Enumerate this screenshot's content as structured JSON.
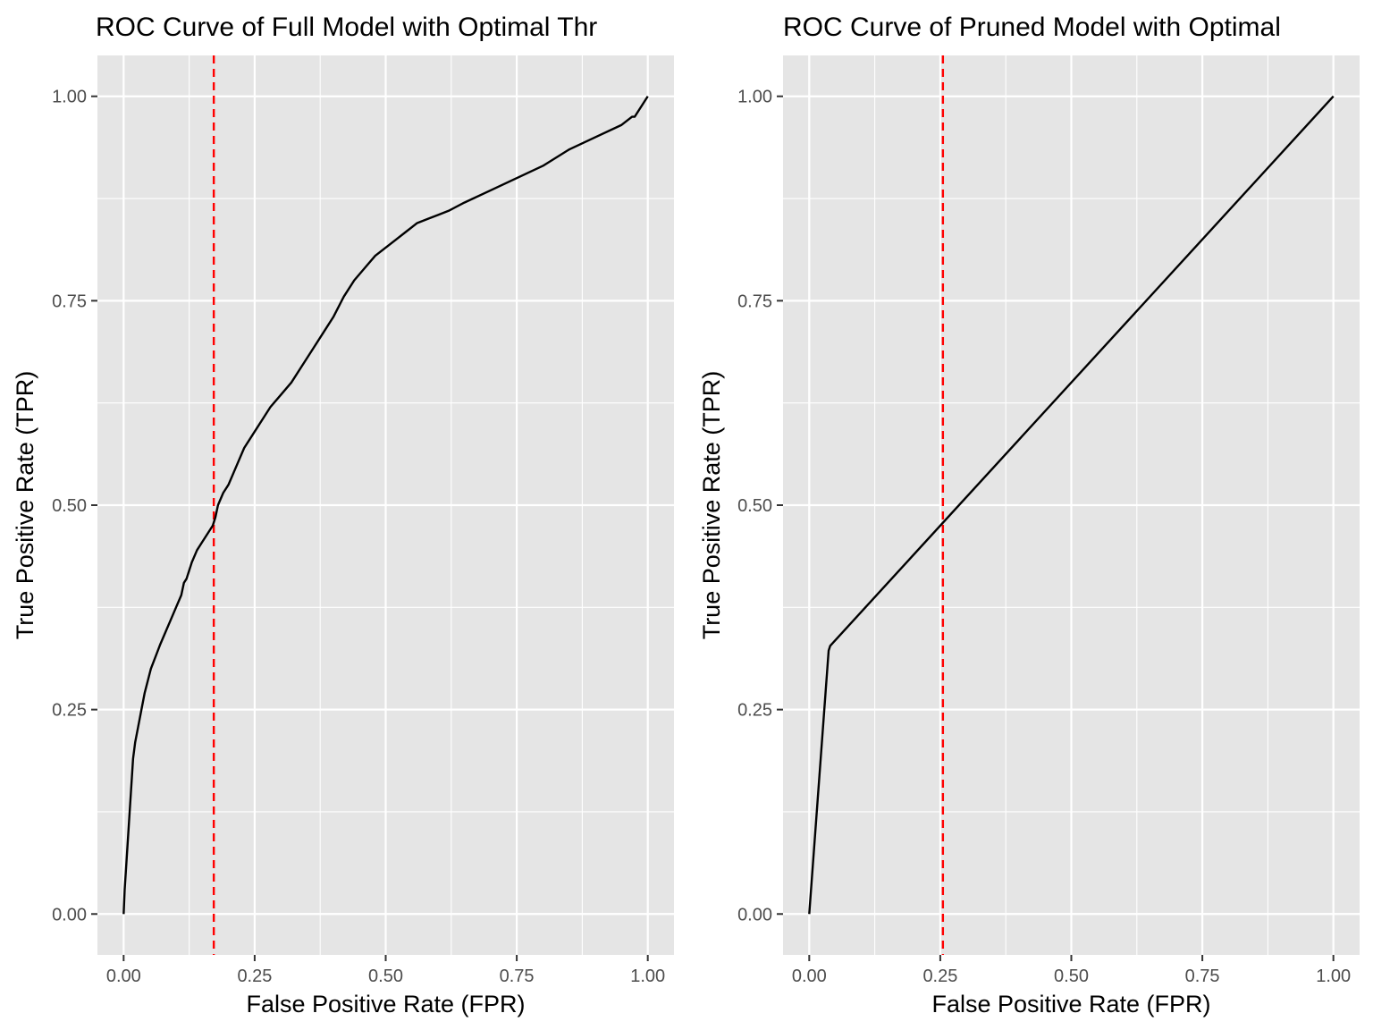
{
  "colors": {
    "panel_background": "#e5e5e5",
    "grid": "#ffffff",
    "roc_line": "#000000",
    "threshold_line": "#ff0000",
    "tick_text": "#4d4d4d",
    "tick_mark": "#333333"
  },
  "chart_data": [
    {
      "type": "line",
      "title": "ROC Curve of Full Model with Optimal Thr",
      "xlabel": "False Positive Rate (FPR)",
      "ylabel": "True Positive Rate (TPR)",
      "xlim": [
        -0.05,
        1.05
      ],
      "ylim": [
        -0.05,
        1.05
      ],
      "xticks": [
        0,
        0.25,
        0.5,
        0.75,
        1
      ],
      "yticks": [
        0,
        0.25,
        0.5,
        0.75,
        1
      ],
      "xtick_labels": [
        "0.00",
        "0.25",
        "0.50",
        "0.75",
        "1.00"
      ],
      "ytick_labels": [
        "0.00",
        "0.25",
        "0.50",
        "0.75",
        "1.00"
      ],
      "grid": true,
      "series": [
        {
          "x": [
            0,
            0.002,
            0.006,
            0.01,
            0.014,
            0.018,
            0.022,
            0.028,
            0.034,
            0.04,
            0.046,
            0.052,
            0.058,
            0.064,
            0.07,
            0.08,
            0.09,
            0.1,
            0.11,
            0.115,
            0.12,
            0.13,
            0.14,
            0.15,
            0.16,
            0.17,
            0.175,
            0.18,
            0.19,
            0.2,
            0.21,
            0.22,
            0.23,
            0.25,
            0.265,
            0.28,
            0.3,
            0.32,
            0.34,
            0.36,
            0.38,
            0.4,
            0.42,
            0.44,
            0.46,
            0.48,
            0.5,
            0.52,
            0.54,
            0.56,
            0.58,
            0.6,
            0.62,
            0.65,
            0.7,
            0.75,
            0.8,
            0.85,
            0.9,
            0.95,
            0.97,
            0.975,
            1
          ],
          "y": [
            0,
            0.03,
            0.07,
            0.11,
            0.15,
            0.19,
            0.21,
            0.23,
            0.25,
            0.27,
            0.285,
            0.3,
            0.31,
            0.32,
            0.33,
            0.345,
            0.36,
            0.375,
            0.39,
            0.405,
            0.41,
            0.43,
            0.445,
            0.455,
            0.465,
            0.475,
            0.485,
            0.5,
            0.515,
            0.525,
            0.54,
            0.555,
            0.57,
            0.59,
            0.605,
            0.62,
            0.635,
            0.65,
            0.67,
            0.69,
            0.71,
            0.73,
            0.755,
            0.775,
            0.79,
            0.805,
            0.815,
            0.825,
            0.835,
            0.845,
            0.85,
            0.855,
            0.86,
            0.87,
            0.885,
            0.9,
            0.915,
            0.935,
            0.95,
            0.965,
            0.975,
            0.975,
            1
          ]
        }
      ],
      "vline": {
        "x": 0.172,
        "style": "dashed"
      }
    },
    {
      "type": "line",
      "title": "ROC Curve of Pruned Model with Optimal",
      "xlabel": "False Positive Rate (FPR)",
      "ylabel": "True Positive Rate (TPR)",
      "xlim": [
        -0.05,
        1.05
      ],
      "ylim": [
        -0.05,
        1.05
      ],
      "xticks": [
        0,
        0.25,
        0.5,
        0.75,
        1
      ],
      "yticks": [
        0,
        0.25,
        0.5,
        0.75,
        1
      ],
      "xtick_labels": [
        "0.00",
        "0.25",
        "0.50",
        "0.75",
        "1.00"
      ],
      "ytick_labels": [
        "0.00",
        "0.25",
        "0.50",
        "0.75",
        "1.00"
      ],
      "grid": true,
      "series": [
        {
          "x": [
            0,
            0.037,
            0.04,
            1
          ],
          "y": [
            0,
            0.322,
            0.328,
            1
          ]
        }
      ],
      "vline": {
        "x": 0.255,
        "style": "dashed"
      }
    }
  ]
}
